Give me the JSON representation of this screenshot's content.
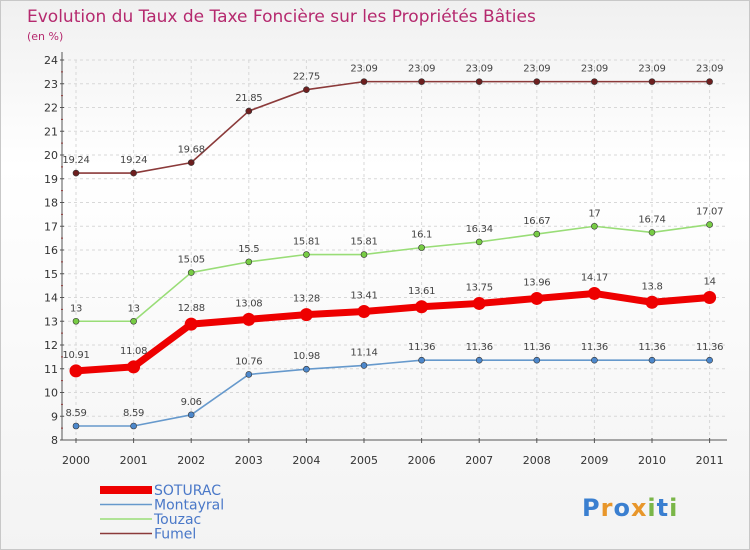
{
  "chart_data": {
    "type": "line",
    "title": "Evolution du Taux de Taxe Foncière sur les Propriétés Bâties",
    "subtitle": "(en %)",
    "categories": [
      "2000",
      "2001",
      "2002",
      "2003",
      "2004",
      "2005",
      "2006",
      "2007",
      "2008",
      "2009",
      "2010",
      "2011"
    ],
    "ylim": [
      8,
      24
    ],
    "yticks": [
      "8",
      "9",
      "10",
      "11",
      "12",
      "13",
      "14",
      "15",
      "16",
      "17",
      "18",
      "19",
      "20",
      "21",
      "22",
      "23",
      "24"
    ],
    "grid": true,
    "legend_position": "bottom-left",
    "series": [
      {
        "name": "Fumel",
        "color": "#8b3a3a",
        "marker_color": "#6e1f1f",
        "values": [
          19.24,
          19.24,
          19.68,
          21.85,
          22.75,
          23.09,
          23.09,
          23.09,
          23.09,
          23.09,
          23.09,
          23.09
        ],
        "labels": [
          "19.24",
          "19.24",
          "19.68",
          "21.85",
          "22.75",
          "23.09",
          "23.09",
          "23.09",
          "23.09",
          "23.09",
          "23.09",
          "23.09"
        ]
      },
      {
        "name": "Touzac",
        "color": "#99dd77",
        "marker_color": "#77cc44",
        "values": [
          13,
          13,
          15.05,
          15.5,
          15.81,
          15.81,
          16.1,
          16.34,
          16.67,
          17,
          16.74,
          17.07
        ],
        "labels": [
          "13",
          "13",
          "15.05",
          "15.5",
          "15.81",
          "15.81",
          "16.1",
          "16.34",
          "16.67",
          "17",
          "16.74",
          "17.07"
        ]
      },
      {
        "name": "SOTURAC",
        "color": "#ee0000",
        "marker_color": "#ee0000",
        "thick": true,
        "values": [
          10.91,
          11.08,
          12.88,
          13.08,
          13.28,
          13.41,
          13.61,
          13.75,
          13.96,
          14.17,
          13.8,
          14
        ],
        "labels": [
          "10.91",
          "11.08",
          "12.88",
          "13.08",
          "13.28",
          "13.41",
          "13.61",
          "13.75",
          "13.96",
          "14.17",
          "13.8",
          "14"
        ]
      },
      {
        "name": "Montayral",
        "color": "#6699cc",
        "marker_color": "#4d88cc",
        "values": [
          8.59,
          8.59,
          9.06,
          10.76,
          10.98,
          11.14,
          11.36,
          11.36,
          11.36,
          11.36,
          11.36,
          11.36
        ],
        "labels": [
          "8.59",
          "8.59",
          "9.06",
          "10.76",
          "10.98",
          "11.14",
          "11.36",
          "11.36",
          "11.36",
          "11.36",
          "11.36",
          "11.36"
        ]
      }
    ],
    "legend": [
      {
        "name": "SOTURAC",
        "color": "#ee0000",
        "thick": true
      },
      {
        "name": "Montayral",
        "color": "#6699cc"
      },
      {
        "name": "Touzac",
        "color": "#99dd77"
      },
      {
        "name": "Fumel",
        "color": "#8b3a3a"
      }
    ]
  },
  "brand": {
    "letters": [
      "P",
      "r",
      "o",
      "x",
      "i",
      "t",
      "i"
    ],
    "colors": [
      "#3a7fd0",
      "#e8962a",
      "#3a7fd0",
      "#e8962a",
      "#7ab648",
      "#3a7fd0",
      "#7ab648"
    ]
  }
}
